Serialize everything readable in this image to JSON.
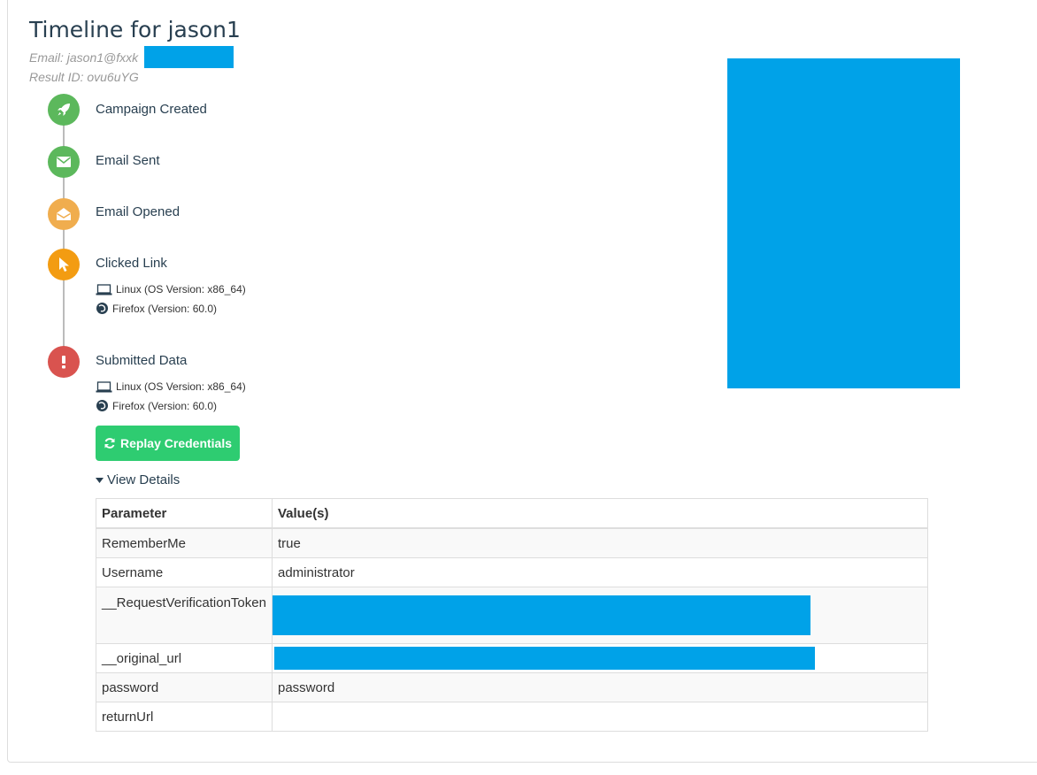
{
  "title": "Timeline for jason1",
  "email": "Email: jason1@fxxk",
  "result_id": "Result ID: ovu6uYG",
  "colors": {
    "green": "#5cb85c",
    "light_orange": "#f0ad4e",
    "orange": "#f39c12",
    "red": "#d9534f",
    "button_green": "#2ecc71",
    "redaction": "#00a2e8"
  },
  "timeline": [
    {
      "label": "Campaign Created",
      "icon": "rocket-icon"
    },
    {
      "label": "Email Sent",
      "icon": "envelope-icon"
    },
    {
      "label": "Email Opened",
      "icon": "envelope-open-icon"
    },
    {
      "label": "Clicked Link",
      "icon": "pointer-icon",
      "details": [
        "Linux (OS Version: x86_64)",
        "Firefox (Version: 60.0)"
      ]
    },
    {
      "label": "Submitted Data",
      "icon": "exclamation-icon",
      "details": [
        "Linux (OS Version: x86_64)",
        "Firefox (Version: 60.0)"
      ]
    }
  ],
  "replay_button": "Replay Credentials",
  "view_details": "View Details",
  "table": {
    "headers": [
      "Parameter",
      "Value(s)"
    ],
    "rows": [
      {
        "param": "RememberMe",
        "value": "true"
      },
      {
        "param": "Username",
        "value": "administrator"
      },
      {
        "param": "__RequestVerificationToken",
        "value": ""
      },
      {
        "param": "__original_url",
        "value": ""
      },
      {
        "param": "password",
        "value": "password"
      },
      {
        "param": "returnUrl",
        "value": ""
      }
    ]
  }
}
